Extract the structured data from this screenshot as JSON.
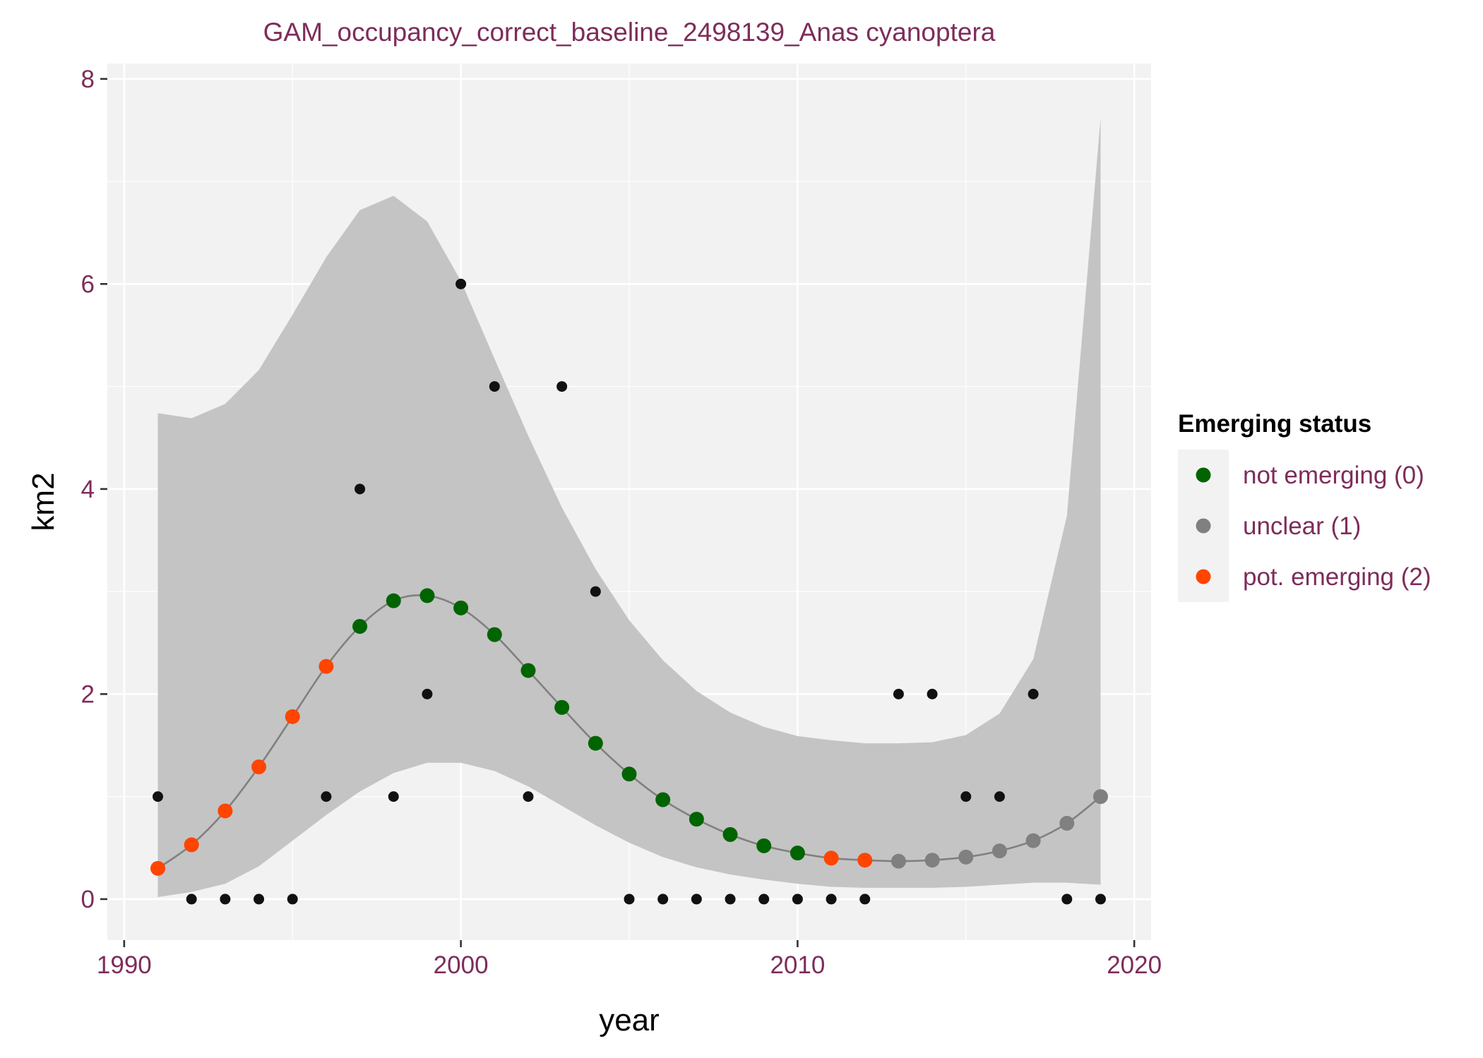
{
  "chart_data": {
    "type": "scatter",
    "title": "GAM_occupancy_correct_baseline_2498139_Anas cyanoptera",
    "xlabel": "year",
    "ylabel": "km2",
    "xlim": [
      1989.5,
      2020.5
    ],
    "ylim": [
      -0.4,
      8.15
    ],
    "x_ticks": [
      1990,
      2000,
      2010,
      2020
    ],
    "y_ticks": [
      0,
      2,
      4,
      6,
      8
    ],
    "x_tick_labels": [
      "1990",
      "2000",
      "2010",
      "2020"
    ],
    "y_tick_labels": [
      "0",
      "2",
      "4",
      "6",
      "8"
    ],
    "grid": true,
    "legend": {
      "title": "Emerging status",
      "placement": "right",
      "entries": [
        {
          "label": "not emerging (0)",
          "color": "#006400"
        },
        {
          "label": "unclear (1)",
          "color": "#808080"
        },
        {
          "label": "pot. emerging (2)",
          "color": "#ff4500"
        }
      ]
    },
    "colors": {
      "panel_background": "#f2f2f2",
      "grid": "#ffffff",
      "ribbon": "#c4c4c4",
      "fit_line": "#808080",
      "observed": "#111111",
      "text": "#7d2d5a"
    },
    "observed": {
      "x": [
        1991,
        1992,
        1993,
        1994,
        1995,
        1996,
        1997,
        1998,
        1999,
        2000,
        2001,
        2002,
        2003,
        2004,
        2005,
        2006,
        2007,
        2008,
        2009,
        2010,
        2011,
        2012,
        2013,
        2014,
        2015,
        2016,
        2017,
        2018,
        2019
      ],
      "y": [
        1,
        0,
        0,
        0,
        0,
        1,
        4,
        1,
        2,
        6,
        5,
        1,
        5,
        3,
        0,
        0,
        0,
        0,
        0,
        0,
        0,
        0,
        2,
        2,
        1,
        1,
        2,
        0,
        0
      ]
    },
    "fit": {
      "x": [
        1991,
        1992,
        1993,
        1994,
        1995,
        1996,
        1997,
        1998,
        1999,
        2000,
        2001,
        2002,
        2003,
        2004,
        2005,
        2006,
        2007,
        2008,
        2009,
        2010,
        2011,
        2012,
        2013,
        2014,
        2015,
        2016,
        2017,
        2018,
        2019
      ],
      "y": [
        0.3,
        0.53,
        0.86,
        1.29,
        1.78,
        2.27,
        2.66,
        2.91,
        2.96,
        2.84,
        2.58,
        2.23,
        1.87,
        1.52,
        1.22,
        0.97,
        0.78,
        0.63,
        0.52,
        0.45,
        0.4,
        0.38,
        0.37,
        0.38,
        0.41,
        0.47,
        0.57,
        0.74,
        1.0
      ],
      "status": [
        2,
        2,
        2,
        2,
        2,
        2,
        0,
        0,
        0,
        0,
        0,
        0,
        0,
        0,
        0,
        0,
        0,
        0,
        0,
        0,
        2,
        2,
        1,
        1,
        1,
        1,
        1,
        1,
        1
      ],
      "lower": [
        0.02,
        0.07,
        0.15,
        0.32,
        0.57,
        0.82,
        1.05,
        1.23,
        1.33,
        1.33,
        1.25,
        1.1,
        0.91,
        0.72,
        0.55,
        0.41,
        0.31,
        0.24,
        0.19,
        0.15,
        0.12,
        0.11,
        0.11,
        0.11,
        0.12,
        0.14,
        0.16,
        0.16,
        0.14
      ],
      "upper": [
        4.74,
        4.69,
        4.83,
        5.16,
        5.7,
        6.26,
        6.72,
        6.86,
        6.61,
        6.03,
        5.27,
        4.52,
        3.82,
        3.22,
        2.72,
        2.33,
        2.03,
        1.82,
        1.68,
        1.59,
        1.55,
        1.52,
        1.52,
        1.53,
        1.6,
        1.81,
        2.34,
        3.74,
        7.62
      ]
    }
  }
}
